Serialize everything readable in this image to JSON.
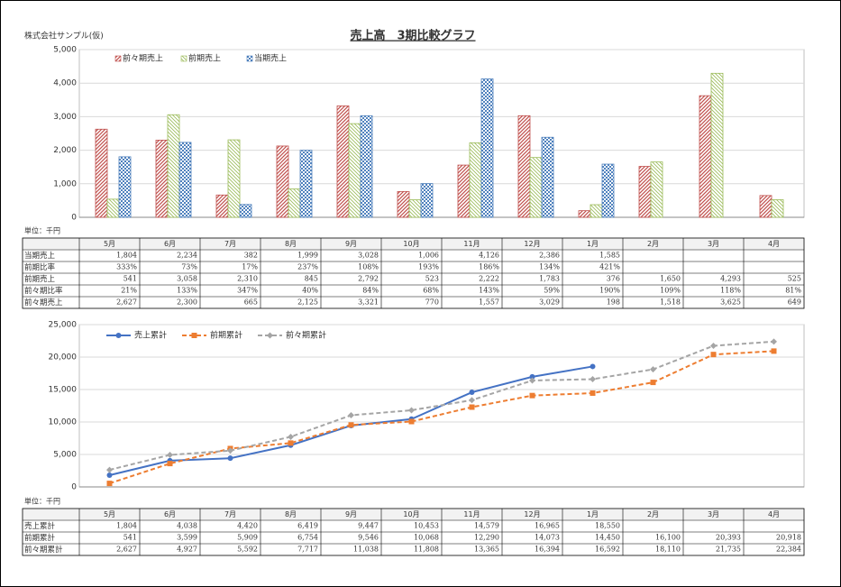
{
  "company": "株式会社サンプル(仮)",
  "chart_data": [
    {
      "type": "bar",
      "title": "売上高　3期比較グラフ",
      "categories": [
        "5月",
        "6月",
        "7月",
        "8月",
        "9月",
        "10月",
        "11月",
        "12月",
        "1月",
        "2月",
        "3月",
        "4月"
      ],
      "series": [
        {
          "name": "前々期売上",
          "color": "#c0504d",
          "values": [
            2627,
            2300,
            665,
            2125,
            3321,
            770,
            1557,
            3029,
            198,
            1518,
            3625,
            649
          ]
        },
        {
          "name": "前期売上",
          "color": "#9bbb59",
          "values": [
            541,
            3058,
            2310,
            845,
            2792,
            523,
            2222,
            1783,
            376,
            1650,
            4293,
            525
          ]
        },
        {
          "name": "当期売上",
          "color": "#4f81bd",
          "values": [
            1804,
            2234,
            382,
            1999,
            3028,
            1006,
            4126,
            2386,
            1585,
            null,
            null,
            null
          ]
        }
      ],
      "ylim": [
        0,
        5000
      ],
      "yticks": [
        0,
        {
          "value": 1000,
          "label": "1,000"
        },
        {
          "value": 2000,
          "label": "2,000"
        },
        {
          "value": 3000,
          "label": "3,000"
        },
        {
          "value": 4000,
          "label": "4,000"
        },
        {
          "value": 5000,
          "label": "5,000"
        }
      ],
      "grid": true,
      "legend": "top-left"
    },
    {
      "type": "line",
      "categories": [
        "5月",
        "6月",
        "7月",
        "8月",
        "9月",
        "10月",
        "11月",
        "12月",
        "1月",
        "2月",
        "3月",
        "4月"
      ],
      "series": [
        {
          "name": "売上累計",
          "color": "#4472c4",
          "dash": false,
          "marker": "circle",
          "values": [
            1804,
            4038,
            4420,
            6419,
            9447,
            10453,
            14579,
            16965,
            18550,
            null,
            null,
            null
          ]
        },
        {
          "name": "前期累計",
          "color": "#ed7d31",
          "dash": true,
          "marker": "square",
          "values": [
            541,
            3599,
            5909,
            6754,
            9546,
            10068,
            12290,
            14073,
            14450,
            16100,
            20393,
            20918
          ]
        },
        {
          "name": "前々期累計",
          "color": "#a5a5a5",
          "dash": true,
          "marker": "diamond",
          "values": [
            2627,
            4927,
            5592,
            7717,
            11038,
            11808,
            13365,
            16394,
            16592,
            18110,
            21735,
            22384
          ]
        }
      ],
      "ylim": [
        0,
        25000
      ],
      "yticks": [
        0,
        {
          "value": 5000,
          "label": "5,000"
        },
        {
          "value": 10000,
          "label": "10,000"
        },
        {
          "value": 15000,
          "label": "15,000"
        },
        {
          "value": 20000,
          "label": "20,000"
        },
        {
          "value": 25000,
          "label": "25,000"
        }
      ],
      "grid": true,
      "legend": "top-left"
    }
  ],
  "tables": [
    {
      "unit": "単位：千円",
      "rows": [
        {
          "label": "当期売上",
          "cells": [
            "1,804",
            "2,234",
            "382",
            "1,999",
            "3,028",
            "1,006",
            "4,126",
            "2,386",
            "1,585",
            null,
            null,
            null
          ]
        },
        {
          "label": "前期比率",
          "cells": [
            "333%",
            "73%",
            "17%",
            "237%",
            "108%",
            "193%",
            "186%",
            "134%",
            "421%",
            null,
            null,
            null
          ]
        },
        {
          "label": "前期売上",
          "cells": [
            "541",
            "3,058",
            "2,310",
            "845",
            "2,792",
            "523",
            "2,222",
            "1,783",
            "376",
            "1,650",
            "4,293",
            "525"
          ]
        },
        {
          "label": "前々期比率",
          "cells": [
            "21%",
            "133%",
            "347%",
            "40%",
            "84%",
            "68%",
            "143%",
            "59%",
            "190%",
            "109%",
            "118%",
            "81%"
          ]
        },
        {
          "label": "前々期売上",
          "cells": [
            "2,627",
            "2,300",
            "665",
            "2,125",
            "3,321",
            "770",
            "1,557",
            "3,029",
            "198",
            "1,518",
            "3,625",
            "649"
          ]
        }
      ]
    },
    {
      "unit": "単位：千円",
      "rows": [
        {
          "label": "売上累計",
          "cells": [
            "1,804",
            "4,038",
            "4,420",
            "6,419",
            "9,447",
            "10,453",
            "14,579",
            "16,965",
            "18,550",
            null,
            null,
            null
          ]
        },
        {
          "label": "前期累計",
          "cells": [
            "541",
            "3,599",
            "5,909",
            "6,754",
            "9,546",
            "10,068",
            "12,290",
            "14,073",
            "14,450",
            "16,100",
            "20,393",
            "20,918"
          ]
        },
        {
          "label": "前々期累計",
          "cells": [
            "2,627",
            "4,927",
            "5,592",
            "7,717",
            "11,038",
            "11,808",
            "13,365",
            "16,394",
            "16,592",
            "18,110",
            "21,735",
            "22,384"
          ]
        }
      ]
    }
  ]
}
